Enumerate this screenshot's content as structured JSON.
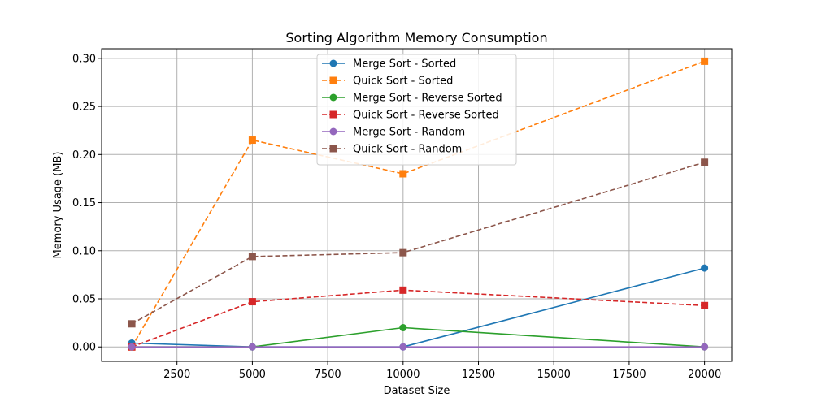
{
  "chart_data": {
    "type": "line",
    "title": "Sorting Algorithm Memory Consumption",
    "xlabel": "Dataset Size",
    "ylabel": "Memory Usage (MB)",
    "x": [
      1000,
      5000,
      10000,
      20000
    ],
    "xlim": [
      -0.0,
      20900
    ],
    "ylim": [
      -0.015,
      0.31
    ],
    "xticks": [
      2500,
      5000,
      7500,
      10000,
      12500,
      15000,
      17500,
      20000
    ],
    "yticks": [
      0.0,
      0.05,
      0.1,
      0.15,
      0.2,
      0.25,
      0.3
    ],
    "ytick_labels": [
      "0.00",
      "0.05",
      "0.10",
      "0.15",
      "0.20",
      "0.25",
      "0.30"
    ],
    "grid": true,
    "legend_position": "top-center",
    "series": [
      {
        "name": "Merge Sort - Sorted",
        "values": [
          0.004,
          0.0,
          0.0,
          0.082
        ],
        "color": "#1f77b4",
        "dash": "solid",
        "marker": "circle"
      },
      {
        "name": "Quick Sort - Sorted",
        "values": [
          0.0,
          0.215,
          0.18,
          0.297
        ],
        "color": "#ff7f0e",
        "dash": "dashed",
        "marker": "square"
      },
      {
        "name": "Merge Sort - Reverse Sorted",
        "values": [
          0.0,
          0.0,
          0.02,
          0.0
        ],
        "color": "#2ca02c",
        "dash": "solid",
        "marker": "circle"
      },
      {
        "name": "Quick Sort - Reverse Sorted",
        "values": [
          0.0,
          0.047,
          0.059,
          0.043
        ],
        "color": "#d62728",
        "dash": "dashed",
        "marker": "square"
      },
      {
        "name": "Merge Sort - Random",
        "values": [
          0.0,
          0.0,
          0.0,
          0.0
        ],
        "color": "#9467bd",
        "dash": "solid",
        "marker": "circle"
      },
      {
        "name": "Quick Sort - Random",
        "values": [
          0.024,
          0.094,
          0.098,
          0.192
        ],
        "color": "#8c564b",
        "dash": "dashed",
        "marker": "square"
      }
    ]
  }
}
